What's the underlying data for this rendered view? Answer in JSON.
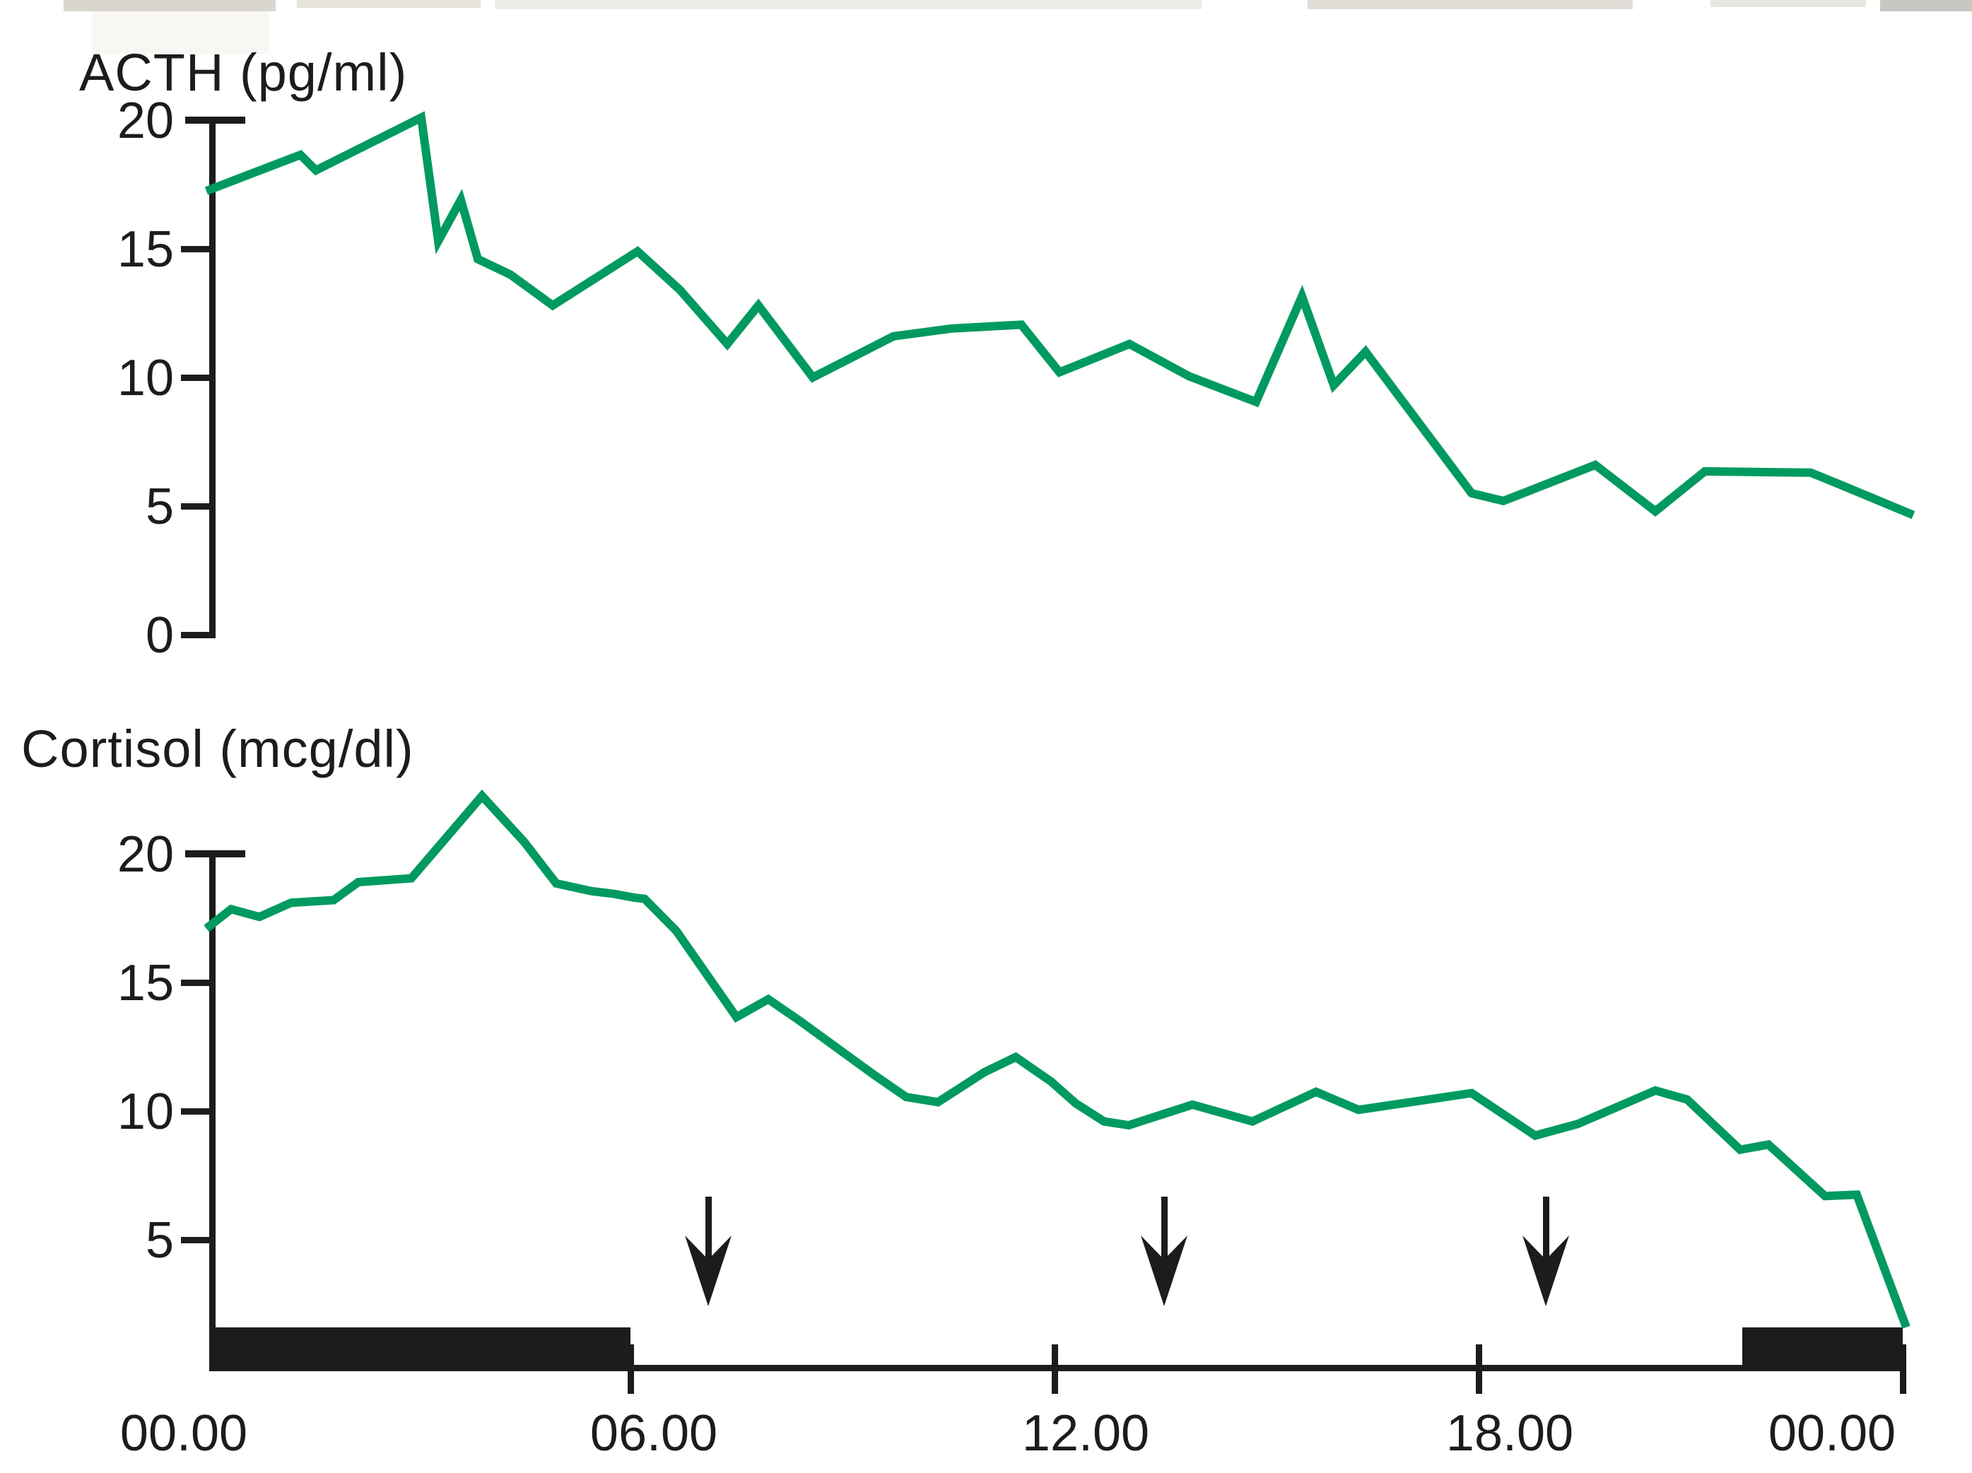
{
  "page": {
    "background": "#ffffff"
  },
  "colors": {
    "curve_green": "#009a60",
    "ink": "#1c1c1c"
  },
  "chart_data": [
    {
      "type": "line",
      "title": "ACTH (pg/ml)",
      "xlabel": "",
      "ylabel": "ACTH (pg/ml)",
      "x_axis": {
        "tick_hours": [
          0,
          6,
          12,
          18,
          24
        ],
        "tick_labels": [
          "00.00",
          "06.00",
          "12.00",
          "18.00",
          "00.00"
        ],
        "range_hours": [
          0,
          24.2
        ],
        "grid": false
      },
      "y_axis": {
        "ticks": [
          20,
          15,
          10,
          5,
          0
        ],
        "range": [
          0,
          20
        ]
      },
      "legend": "none",
      "series": [
        {
          "name": "ACTH",
          "color": "#009a60",
          "points": [
            [
              0,
              17.25
            ],
            [
              1.33,
              18.65
            ],
            [
              1.55,
              18.05
            ],
            [
              3.04,
              20.1
            ],
            [
              3.28,
              15.3
            ],
            [
              3.6,
              16.9
            ],
            [
              3.84,
              14.6
            ],
            [
              4.3,
              14.0
            ],
            [
              4.9,
              12.8
            ],
            [
              6.1,
              14.9
            ],
            [
              6.7,
              13.4
            ],
            [
              7.37,
              11.3
            ],
            [
              7.81,
              12.8
            ],
            [
              8.58,
              10.0
            ],
            [
              9.72,
              11.6
            ],
            [
              10.54,
              11.9
            ],
            [
              11.53,
              12.05
            ],
            [
              12.07,
              10.2
            ],
            [
              13.06,
              11.3
            ],
            [
              13.9,
              10.05
            ],
            [
              14.85,
              9.05
            ],
            [
              15.5,
              13.15
            ],
            [
              15.95,
              9.7
            ],
            [
              16.4,
              11.0
            ],
            [
              17.9,
              5.5
            ],
            [
              18.35,
              5.2
            ],
            [
              19.65,
              6.6
            ],
            [
              20.5,
              4.8
            ],
            [
              21.2,
              6.35
            ],
            [
              22.7,
              6.3
            ],
            [
              23.1,
              5.85
            ],
            [
              24.15,
              4.65
            ]
          ]
        }
      ]
    },
    {
      "type": "line",
      "title": "Cortisol (mcg/dl)",
      "xlabel": "",
      "ylabel": "Cortisol (mcg/dl)",
      "x_axis": {
        "tick_hours": [
          0,
          6,
          12,
          18,
          24
        ],
        "tick_labels": [
          "00.00",
          "06.00",
          "12.00",
          "18.00",
          "00.00"
        ],
        "range_hours": [
          0,
          24.1
        ],
        "grid": false
      },
      "y_axis": {
        "ticks": [
          20,
          15,
          10,
          5
        ],
        "range": [
          0,
          22.5
        ]
      },
      "legend": "none",
      "series": [
        {
          "name": "Cortisol",
          "color": "#009a60",
          "points": [
            [
              0,
              17.1
            ],
            [
              0.35,
              17.85
            ],
            [
              0.75,
              17.55
            ],
            [
              1.2,
              18.1
            ],
            [
              1.8,
              18.2
            ],
            [
              2.15,
              18.9
            ],
            [
              2.9,
              19.05
            ],
            [
              3.9,
              22.25
            ],
            [
              4.5,
              20.45
            ],
            [
              4.95,
              18.85
            ],
            [
              5.45,
              18.55
            ],
            [
              5.75,
              18.45
            ],
            [
              6.05,
              18.3
            ],
            [
              6.2,
              18.25
            ],
            [
              6.65,
              17.0
            ],
            [
              7.5,
              13.65
            ],
            [
              7.95,
              14.35
            ],
            [
              8.4,
              13.5
            ],
            [
              9.0,
              12.3
            ],
            [
              9.45,
              11.4
            ],
            [
              9.9,
              10.55
            ],
            [
              10.35,
              10.35
            ],
            [
              11.0,
              11.5
            ],
            [
              11.45,
              12.1
            ],
            [
              11.95,
              11.15
            ],
            [
              12.3,
              10.3
            ],
            [
              12.7,
              9.6
            ],
            [
              13.05,
              9.45
            ],
            [
              13.95,
              10.25
            ],
            [
              14.8,
              9.6
            ],
            [
              15.7,
              10.75
            ],
            [
              16.3,
              10.05
            ],
            [
              17.9,
              10.7
            ],
            [
              18.8,
              9.05
            ],
            [
              19.4,
              9.5
            ],
            [
              20.5,
              10.8
            ],
            [
              20.95,
              10.45
            ],
            [
              21.7,
              8.5
            ],
            [
              22.1,
              8.7
            ],
            [
              22.9,
              6.7
            ],
            [
              23.35,
              6.75
            ],
            [
              24.05,
              1.6
            ]
          ]
        }
      ],
      "annotations": {
        "down_arrows_hours": [
          7.1,
          13.55,
          18.95
        ],
        "black_bars_hours": [
          [
            0.05,
            6.0
          ],
          [
            21.73,
            24.0
          ]
        ]
      }
    }
  ]
}
